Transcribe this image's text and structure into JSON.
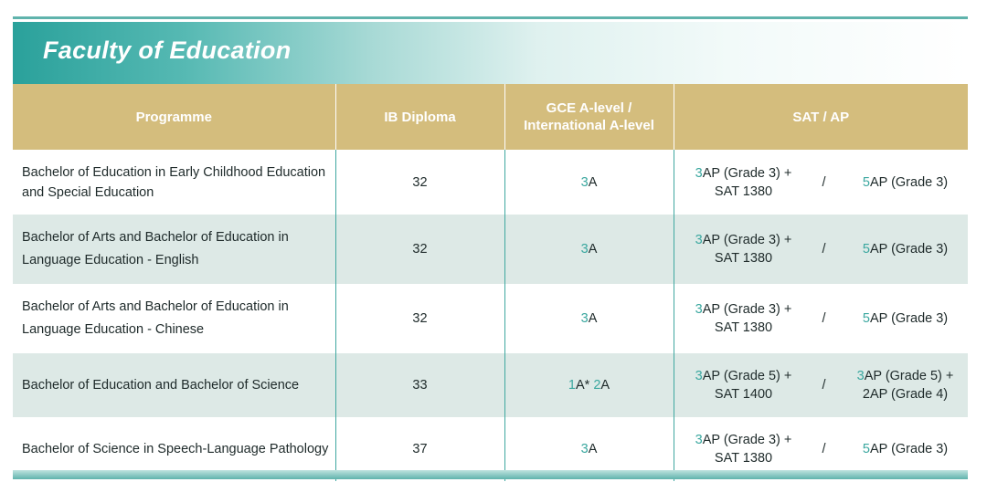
{
  "title": "Faculty of Education",
  "headers": {
    "programme": "Programme",
    "ib": "IB Diploma",
    "gce_line1": "GCE A-level /",
    "gce_line2": "International A-level",
    "sat": "SAT / AP"
  },
  "rows": [
    {
      "programme_l1": "Bachelor of Education in Early Childhood Education",
      "programme_l2": "and Special Education",
      "ib": "32",
      "gce_n1": "3",
      "gce_t1": "A",
      "gce_n2": "",
      "gce_t2": "",
      "sat_a_n": "3",
      "sat_a_l1": "AP (Grade 3) +",
      "sat_a_l2": "SAT 1380",
      "slash": "/",
      "sat_b_n": "5",
      "sat_b_l1": "AP (Grade 3)",
      "sat_b_l2": ""
    },
    {
      "programme_l1": "Bachelor of Arts and Bachelor of Education in",
      "programme_l2": "Language Education - English",
      "ib": "32",
      "gce_n1": "3",
      "gce_t1": "A",
      "gce_n2": "",
      "gce_t2": "",
      "sat_a_n": "3",
      "sat_a_l1": "AP (Grade 3) +",
      "sat_a_l2": "SAT 1380",
      "slash": "/",
      "sat_b_n": "5",
      "sat_b_l1": "AP (Grade 3)",
      "sat_b_l2": ""
    },
    {
      "programme_l1": "Bachelor of Arts and Bachelor of Education in",
      "programme_l2": "Language Education - Chinese",
      "ib": "32",
      "gce_n1": "3",
      "gce_t1": "A",
      "gce_n2": "",
      "gce_t2": "",
      "sat_a_n": "3",
      "sat_a_l1": "AP (Grade 3) +",
      "sat_a_l2": "SAT 1380",
      "slash": "/",
      "sat_b_n": "5",
      "sat_b_l1": "AP (Grade 3)",
      "sat_b_l2": ""
    },
    {
      "programme_l1": "Bachelor of Education and Bachelor of Science",
      "programme_l2": "",
      "ib": "33",
      "gce_n1": "1",
      "gce_t1": "A* ",
      "gce_n2": "2",
      "gce_t2": "A",
      "sat_a_n": "3",
      "sat_a_l1": "AP (Grade 5) +",
      "sat_a_l2": "SAT 1400",
      "slash": "/",
      "sat_b_n": "3",
      "sat_b_l1": "AP (Grade 5) +",
      "sat_b_l2": "2AP (Grade 4)"
    },
    {
      "programme_l1": "Bachelor of Science in Speech-Language Pathology",
      "programme_l2": "",
      "ib": "37",
      "gce_n1": "3",
      "gce_t1": "A",
      "gce_n2": "",
      "gce_t2": "",
      "sat_a_n": "3",
      "sat_a_l1": "AP (Grade 3) +",
      "sat_a_l2": "SAT 1380",
      "slash": "/",
      "sat_b_n": "5",
      "sat_b_l1": "AP (Grade 3)",
      "sat_b_l2": ""
    }
  ],
  "colors": {
    "accent_teal": "#3aa79f",
    "header_gold": "#d4bd7d",
    "row_shade": "#dde9e6"
  }
}
